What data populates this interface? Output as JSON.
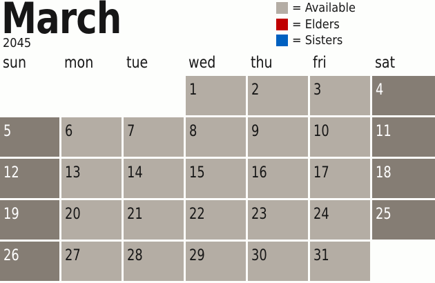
{
  "header": {
    "month": "March",
    "year": "2045"
  },
  "legend": [
    {
      "label": "= Available",
      "color": "#b4ada4"
    },
    {
      "label": "= Elders",
      "color": "#c00000"
    },
    {
      "label": "= Sisters",
      "color": "#0060c0"
    }
  ],
  "colors": {
    "weekday": "#b4ada4",
    "weekend": "#857d74",
    "weekday_text": "#161616",
    "weekend_text": "#ffffff"
  },
  "calendar": {
    "days_of_week": [
      "sun",
      "mon",
      "tue",
      "wed",
      "thu",
      "fri",
      "sat"
    ],
    "weeks": [
      [
        "",
        "",
        "",
        "1",
        "2",
        "3",
        "4"
      ],
      [
        "5",
        "6",
        "7",
        "8",
        "9",
        "10",
        "11"
      ],
      [
        "12",
        "13",
        "14",
        "15",
        "16",
        "17",
        "18"
      ],
      [
        "19",
        "20",
        "21",
        "22",
        "23",
        "24",
        "25"
      ],
      [
        "26",
        "27",
        "28",
        "29",
        "30",
        "31",
        ""
      ]
    ]
  }
}
